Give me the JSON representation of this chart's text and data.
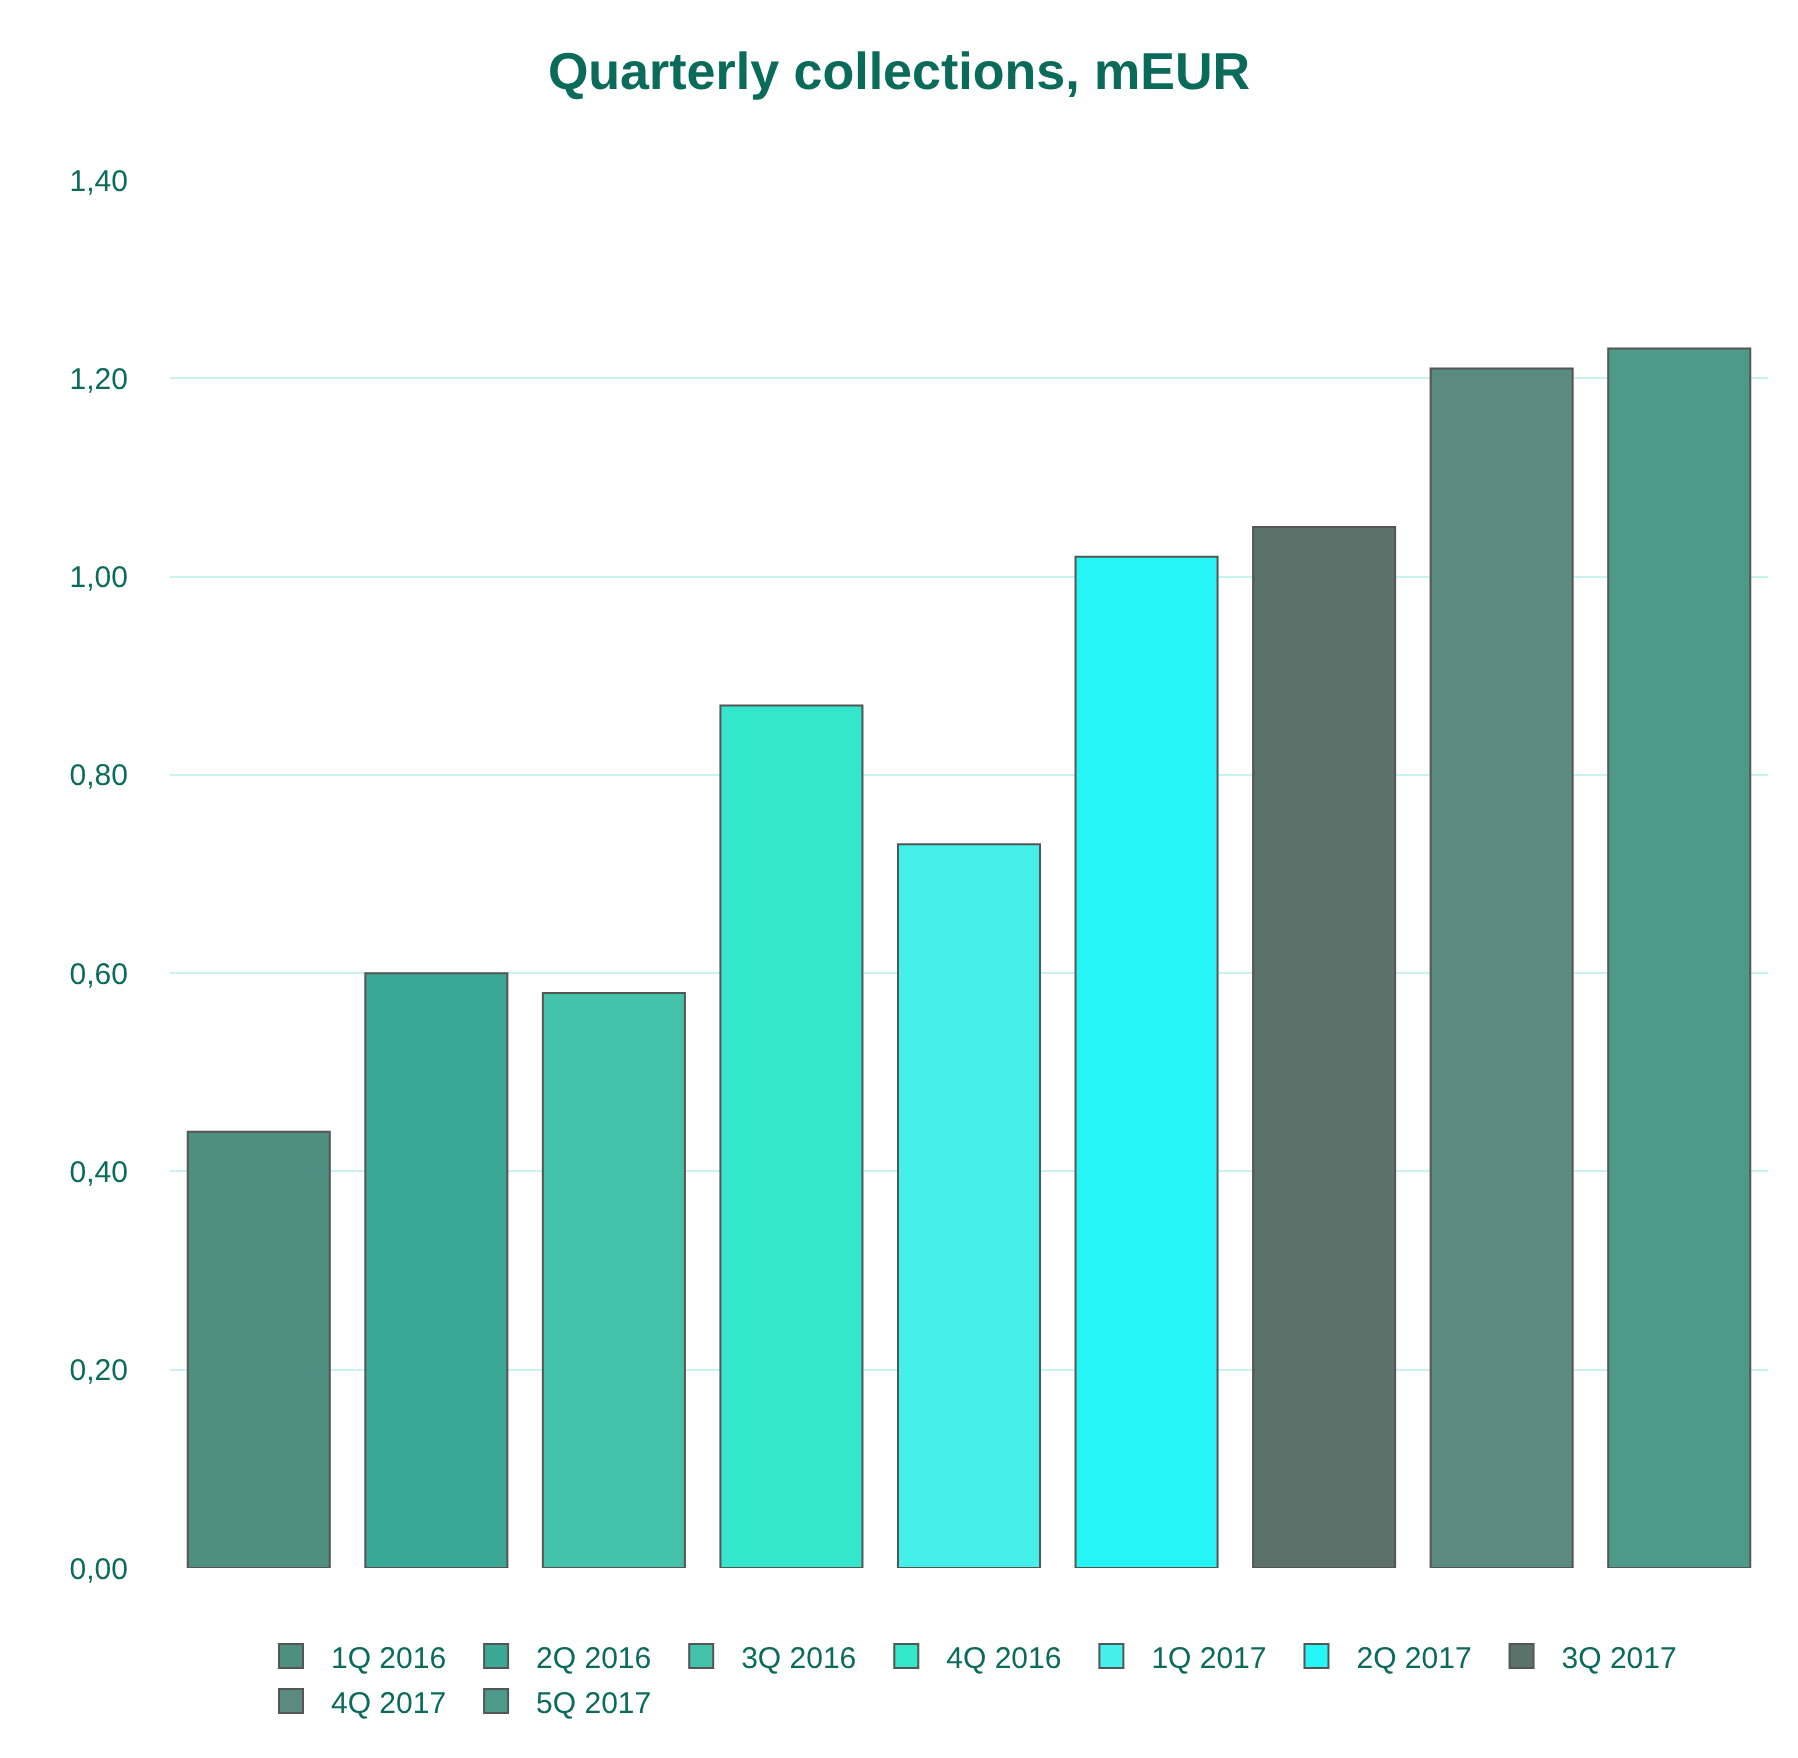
{
  "chart_data": {
    "type": "bar",
    "title": "Quarterly collections, mEUR",
    "categories": [
      null,
      null,
      null,
      null,
      null,
      null,
      null,
      null,
      null
    ],
    "series": [
      {
        "name": "1Q 2016",
        "color": "#4f8f82",
        "values": [
          0.44,
          null,
          null,
          null,
          null,
          null,
          null,
          null,
          null
        ]
      },
      {
        "name": "2Q 2016",
        "color": "#3aa894",
        "values": [
          null,
          0.6,
          null,
          null,
          null,
          null,
          null,
          null,
          null
        ]
      },
      {
        "name": "3Q 2016",
        "color": "#45c2aa",
        "values": [
          null,
          null,
          0.58,
          null,
          null,
          null,
          null,
          null,
          null
        ]
      },
      {
        "name": "4Q 2016",
        "color": "#33e6cc",
        "values": [
          null,
          null,
          null,
          0.87,
          null,
          null,
          null,
          null,
          null
        ]
      },
      {
        "name": "1Q 2017",
        "color": "#45efea",
        "values": [
          null,
          null,
          null,
          null,
          0.73,
          null,
          null,
          null,
          null
        ]
      },
      {
        "name": "2Q 2017",
        "color": "#26f5f5",
        "values": [
          null,
          null,
          null,
          null,
          null,
          1.02,
          null,
          null,
          null
        ]
      },
      {
        "name": "3Q 2017",
        "color": "#5c716a",
        "values": [
          null,
          null,
          null,
          null,
          null,
          null,
          1.05,
          null,
          null
        ]
      },
      {
        "name": "4Q 2017",
        "color": "#5a8a80",
        "values": [
          null,
          null,
          null,
          null,
          null,
          null,
          null,
          1.21,
          null
        ]
      },
      {
        "name": "5Q 2017",
        "color": "#4d9a8a",
        "values": [
          null,
          null,
          null,
          null,
          null,
          null,
          null,
          null,
          1.23
        ]
      }
    ],
    "ylim": [
      0,
      1.4
    ],
    "yticks": [
      {
        "value": 0,
        "label": "0,00"
      },
      {
        "value": 0.2,
        "label": "0,20"
      },
      {
        "value": 0.4,
        "label": "0,40"
      },
      {
        "value": 0.6,
        "label": "0,60"
      },
      {
        "value": 0.8,
        "label": "0,80"
      },
      {
        "value": 1.0,
        "label": "1,00"
      },
      {
        "value": 1.2,
        "label": "1,20"
      },
      {
        "value": 1.4,
        "label": "1,40"
      }
    ],
    "grid": "y",
    "legend": "bottom",
    "tick_labels": "y"
  }
}
